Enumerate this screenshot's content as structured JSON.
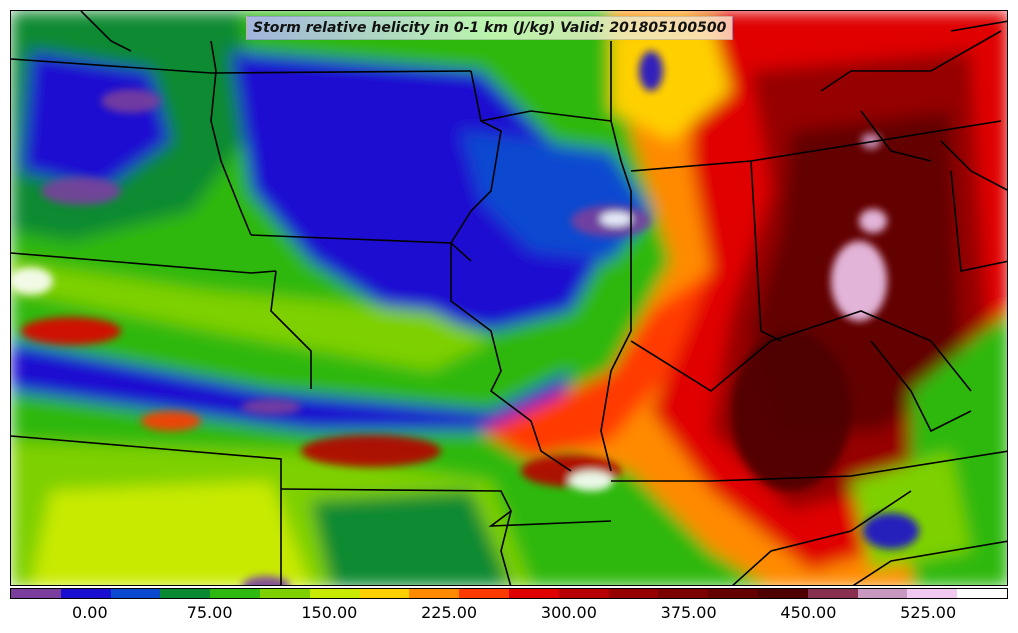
{
  "title": "Storm relative helicity in 0-1 km (J/kg) Valid: 201805100500",
  "colorbar": {
    "colors": [
      "#7a3f9c",
      "#1a0fd0",
      "#0a48d0",
      "#0a8a32",
      "#2eb810",
      "#7ed000",
      "#c8ea00",
      "#ffd000",
      "#ff8a00",
      "#ff3a00",
      "#e00000",
      "#b80000",
      "#960000",
      "#7c0000",
      "#640000",
      "#4e0000",
      "#883050",
      "#c898c0",
      "#f0c8f0",
      "#ffffff"
    ],
    "tick_labels": [
      "0.00",
      "75.00",
      "150.00",
      "225.00",
      "300.00",
      "375.00",
      "450.00",
      "525.00"
    ],
    "tick_positions": [
      2,
      5,
      8,
      11,
      14,
      17,
      20,
      23
    ]
  },
  "legend_steps": 25
}
